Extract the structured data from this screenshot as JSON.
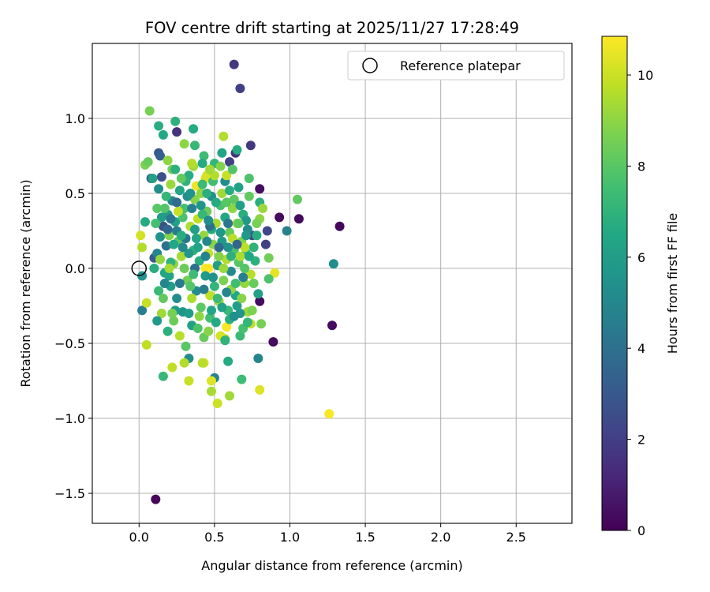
{
  "chart_data": {
    "type": "scatter",
    "title": "FOV centre drift starting at 2025/11/27 17:28:49",
    "xlabel": "Angular distance from reference (arcmin)",
    "ylabel": "Rotation from reference (arcmin)",
    "xlim": [
      -0.31,
      2.87
    ],
    "ylim": [
      -1.7,
      1.5
    ],
    "xticks": [
      0.0,
      0.5,
      1.0,
      1.5,
      2.0,
      2.5
    ],
    "xtick_labels": [
      "0.0",
      "0.5",
      "1.0",
      "1.5",
      "2.0",
      "2.5"
    ],
    "yticks": [
      -1.5,
      -1.0,
      -0.5,
      0.0,
      0.5,
      1.0
    ],
    "ytick_labels": [
      "−1.5",
      "−1.0",
      "−0.5",
      "0.0",
      "0.5",
      "1.0"
    ],
    "grid": true,
    "colormap": "viridis",
    "colorbar": {
      "label": "Hours from first FF file",
      "range": [
        0,
        10.85
      ],
      "ticks": [
        0,
        2,
        4,
        6,
        8,
        10
      ],
      "tick_labels": [
        "0",
        "2",
        "4",
        "6",
        "8",
        "10"
      ]
    },
    "legend": {
      "position": "top-right",
      "entries": [
        {
          "label": "Reference platepar",
          "marker": "open-circle"
        }
      ]
    },
    "reference_point": {
      "x": 0.0,
      "y": 0.0
    },
    "points": [
      [
        0.63,
        1.36,
        1.8
      ],
      [
        0.67,
        1.2,
        2.0
      ],
      [
        0.74,
        0.82,
        1.8
      ],
      [
        0.64,
        0.77,
        1.5
      ],
      [
        0.25,
        0.91,
        1.6
      ],
      [
        0.13,
        0.77,
        3.0
      ],
      [
        0.14,
        0.75,
        3.3
      ],
      [
        0.08,
        0.6,
        3.0
      ],
      [
        0.15,
        0.61,
        2.6
      ],
      [
        0.6,
        0.71,
        2.0
      ],
      [
        0.8,
        0.53,
        0.4
      ],
      [
        0.93,
        0.34,
        0.3
      ],
      [
        1.06,
        0.33,
        0.3
      ],
      [
        1.33,
        0.28,
        0.2
      ],
      [
        0.89,
        -0.49,
        0.3
      ],
      [
        1.28,
        -0.38,
        0.3
      ],
      [
        0.11,
        -1.54,
        0.2
      ],
      [
        0.8,
        -0.22,
        0.3
      ],
      [
        0.75,
        0.22,
        2.3
      ],
      [
        0.85,
        0.25,
        2.3
      ],
      [
        0.84,
        0.16,
        2.1
      ],
      [
        0.98,
        0.25,
        4.8
      ],
      [
        1.29,
        0.03,
        5.2
      ],
      [
        0.79,
        -0.6,
        4.9
      ],
      [
        0.5,
        -0.73,
        4.7
      ],
      [
        0.33,
        -0.6,
        5.3
      ],
      [
        0.02,
        -0.28,
        4.6
      ],
      [
        0.02,
        -0.05,
        5.5
      ],
      [
        0.04,
        0.31,
        6.6
      ],
      [
        0.09,
        0.6,
        6.2
      ],
      [
        0.13,
        0.95,
        6.8
      ],
      [
        0.16,
        0.89,
        6.5
      ],
      [
        0.24,
        0.98,
        6.9
      ],
      [
        0.36,
        0.93,
        6.6
      ],
      [
        0.37,
        0.82,
        7.2
      ],
      [
        0.43,
        0.75,
        7.4
      ],
      [
        0.5,
        0.7,
        7.1
      ],
      [
        0.55,
        0.77,
        6.3
      ],
      [
        0.65,
        0.79,
        6.6
      ],
      [
        0.73,
        0.6,
        7.8
      ],
      [
        0.8,
        0.44,
        6.8
      ],
      [
        0.68,
        -0.74,
        7.4
      ],
      [
        0.16,
        -0.72,
        7.2
      ],
      [
        0.07,
        1.05,
        8.6
      ],
      [
        0.04,
        0.69,
        8.7
      ],
      [
        0.06,
        0.71,
        8.3
      ],
      [
        0.3,
        0.83,
        9.0
      ],
      [
        0.56,
        0.88,
        9.6
      ],
      [
        0.45,
        0.62,
        10.0
      ],
      [
        0.38,
        0.55,
        10.6
      ],
      [
        0.44,
        0.6,
        10.2
      ],
      [
        0.73,
        0.48,
        8.2
      ],
      [
        0.82,
        0.4,
        9.2
      ],
      [
        0.8,
        0.33,
        9.0
      ],
      [
        1.05,
        0.46,
        8.2
      ],
      [
        0.86,
        0.07,
        8.5
      ],
      [
        0.9,
        -0.03,
        10.4
      ],
      [
        0.86,
        -0.07,
        7.8
      ],
      [
        0.81,
        -0.37,
        8.6
      ],
      [
        0.74,
        -0.37,
        9.8
      ],
      [
        0.72,
        -0.29,
        9.2
      ],
      [
        0.67,
        -0.45,
        7.3
      ],
      [
        0.57,
        -0.47,
        9.5
      ],
      [
        0.59,
        -0.62,
        6.6
      ],
      [
        0.54,
        -0.45,
        10.2
      ],
      [
        0.6,
        -0.85,
        9.3
      ],
      [
        0.52,
        -0.9,
        10.0
      ],
      [
        0.48,
        -0.82,
        9.4
      ],
      [
        0.48,
        -0.75,
        10.3
      ],
      [
        0.43,
        -0.63,
        10.1
      ],
      [
        0.42,
        -0.63,
        9.7
      ],
      [
        0.33,
        -0.75,
        9.9
      ],
      [
        0.3,
        -0.63,
        9.6
      ],
      [
        0.22,
        -0.66,
        9.8
      ],
      [
        0.05,
        -0.51,
        9.8
      ],
      [
        0.05,
        -0.23,
        9.9
      ],
      [
        0.02,
        0.14,
        9.6
      ],
      [
        0.01,
        0.22,
        10.1
      ],
      [
        0.8,
        -0.81,
        10.3
      ],
      [
        1.26,
        -0.97,
        10.8
      ],
      [
        0.44,
        0.0,
        10.8
      ],
      [
        0.46,
        0.0,
        10.9
      ],
      [
        0.58,
        -0.39,
        10.8
      ],
      [
        0.1,
        0.07,
        3.1
      ],
      [
        0.12,
        0.1,
        4.9
      ],
      [
        0.14,
        0.21,
        5.5
      ],
      [
        0.16,
        0.28,
        2.7
      ],
      [
        0.17,
        -0.03,
        6.5
      ],
      [
        0.18,
        0.15,
        4.1
      ],
      [
        0.19,
        0.36,
        5.9
      ],
      [
        0.2,
        0.22,
        8.8
      ],
      [
        0.21,
        -0.12,
        6.1
      ],
      [
        0.22,
        0.45,
        5.0
      ],
      [
        0.23,
        0.03,
        9.0
      ],
      [
        0.24,
        0.31,
        6.2
      ],
      [
        0.25,
        -0.2,
        5.3
      ],
      [
        0.26,
        0.18,
        8.0
      ],
      [
        0.27,
        0.52,
        6.4
      ],
      [
        0.28,
        0.08,
        9.4
      ],
      [
        0.29,
        -0.29,
        5.6
      ],
      [
        0.3,
        0.4,
        7.6
      ],
      [
        0.31,
        0.2,
        4.3
      ],
      [
        0.32,
        -0.08,
        8.5
      ],
      [
        0.33,
        0.62,
        6.7
      ],
      [
        0.34,
        0.28,
        9.6
      ],
      [
        0.35,
        -0.38,
        6.2
      ],
      [
        0.36,
        0.12,
        7.0
      ],
      [
        0.37,
        0.46,
        8.9
      ],
      [
        0.38,
        -0.15,
        5.2
      ],
      [
        0.39,
        0.33,
        9.8
      ],
      [
        0.4,
        0.05,
        6.8
      ],
      [
        0.41,
        -0.26,
        8.1
      ],
      [
        0.42,
        0.56,
        7.3
      ],
      [
        0.43,
        0.22,
        9.1
      ],
      [
        0.44,
        -0.05,
        5.8
      ],
      [
        0.45,
        0.38,
        8.4
      ],
      [
        0.46,
        0.1,
        9.9
      ],
      [
        0.47,
        -0.33,
        7.5
      ],
      [
        0.48,
        0.48,
        5.4
      ],
      [
        0.49,
        0.16,
        8.9
      ],
      [
        0.5,
        -0.12,
        7.1
      ],
      [
        0.51,
        0.3,
        9.4
      ],
      [
        0.52,
        0.02,
        6.0
      ],
      [
        0.53,
        -0.22,
        9.2
      ],
      [
        0.54,
        0.42,
        7.7
      ],
      [
        0.55,
        0.18,
        5.9
      ],
      [
        0.56,
        -0.08,
        8.7
      ],
      [
        0.57,
        0.34,
        6.5
      ],
      [
        0.58,
        0.06,
        9.6
      ],
      [
        0.59,
        -0.28,
        7.2
      ],
      [
        0.6,
        0.24,
        8.3
      ],
      [
        0.61,
        -0.02,
        5.1
      ],
      [
        0.62,
        0.4,
        9.0
      ],
      [
        0.63,
        0.12,
        7.8
      ],
      [
        0.64,
        -0.18,
        6.4
      ],
      [
        0.65,
        0.3,
        9.3
      ],
      [
        0.66,
        0.04,
        8.0
      ],
      [
        0.67,
        -0.3,
        5.6
      ],
      [
        0.68,
        0.18,
        8.8
      ],
      [
        0.69,
        0.36,
        6.8
      ],
      [
        0.7,
        -0.1,
        9.1
      ],
      [
        0.71,
        0.1,
        7.4
      ],
      [
        0.72,
        0.26,
        5.3
      ],
      [
        0.74,
        -0.04,
        9.7
      ],
      [
        0.76,
        0.14,
        7.0
      ],
      [
        0.78,
        0.3,
        8.6
      ],
      [
        0.79,
        -0.17,
        6.2
      ],
      [
        0.13,
        -0.15,
        7.3
      ],
      [
        0.15,
        -0.3,
        9.3
      ],
      [
        0.17,
        0.4,
        7.9
      ],
      [
        0.19,
        -0.42,
        6.9
      ],
      [
        0.21,
        0.56,
        9.2
      ],
      [
        0.23,
        -0.35,
        8.4
      ],
      [
        0.25,
        0.25,
        4.6
      ],
      [
        0.27,
        -0.45,
        9.7
      ],
      [
        0.29,
        0.34,
        7.7
      ],
      [
        0.31,
        -0.52,
        8.0
      ],
      [
        0.33,
        0.1,
        5.7
      ],
      [
        0.35,
        -0.2,
        9.5
      ],
      [
        0.37,
        0.26,
        6.1
      ],
      [
        0.39,
        -0.4,
        7.8
      ],
      [
        0.41,
        0.5,
        9.0
      ],
      [
        0.43,
        -0.46,
        8.3
      ],
      [
        0.45,
        0.18,
        5.0
      ],
      [
        0.47,
        -0.18,
        9.8
      ],
      [
        0.49,
        0.58,
        7.5
      ],
      [
        0.51,
        -0.36,
        6.6
      ],
      [
        0.53,
        0.08,
        8.8
      ],
      [
        0.55,
        0.5,
        9.3
      ],
      [
        0.57,
        -0.48,
        7.0
      ],
      [
        0.59,
        0.14,
        5.5
      ],
      [
        0.61,
        -0.14,
        9.0
      ],
      [
        0.63,
        0.46,
        8.1
      ],
      [
        0.65,
        -0.25,
        6.0
      ],
      [
        0.67,
        0.08,
        9.5
      ],
      [
        0.69,
        -0.4,
        7.6
      ],
      [
        0.71,
        0.32,
        5.8
      ],
      [
        0.75,
        -0.28,
        8.7
      ],
      [
        0.77,
        0.05,
        6.9
      ],
      [
        0.12,
        0.4,
        8.0
      ],
      [
        0.14,
        0.06,
        9.1
      ],
      [
        0.16,
        -0.2,
        8.2
      ],
      [
        0.18,
        0.48,
        7.1
      ],
      [
        0.2,
        -0.05,
        6.3
      ],
      [
        0.22,
        0.66,
        8.6
      ],
      [
        0.24,
        -0.28,
        5.9
      ],
      [
        0.26,
        0.38,
        9.9
      ],
      [
        0.28,
        0.22,
        6.7
      ],
      [
        0.3,
        0.0,
        8.4
      ],
      [
        0.32,
        0.48,
        5.2
      ],
      [
        0.34,
        -0.12,
        7.9
      ],
      [
        0.36,
        0.68,
        9.3
      ],
      [
        0.38,
        0.2,
        6.4
      ],
      [
        0.4,
        -0.32,
        9.0
      ],
      [
        0.42,
        0.36,
        7.2
      ],
      [
        0.44,
        0.08,
        4.8
      ],
      [
        0.46,
        -0.42,
        8.9
      ],
      [
        0.48,
        0.26,
        6.6
      ],
      [
        0.5,
        0.62,
        9.6
      ],
      [
        0.52,
        -0.2,
        7.3
      ],
      [
        0.54,
        0.24,
        5.7
      ],
      [
        0.56,
        0.0,
        9.2
      ],
      [
        0.58,
        0.44,
        8.0
      ],
      [
        0.6,
        -0.34,
        6.8
      ],
      [
        0.62,
        0.2,
        9.7
      ],
      [
        0.64,
        -0.1,
        7.5
      ],
      [
        0.66,
        0.54,
        6.2
      ],
      [
        0.68,
        -0.2,
        8.9
      ],
      [
        0.7,
        0.14,
        9.8
      ],
      [
        0.72,
        -0.36,
        7.1
      ],
      [
        0.13,
        0.53,
        5.3
      ],
      [
        0.15,
        0.34,
        6.0
      ],
      [
        0.17,
        -0.1,
        4.9
      ],
      [
        0.19,
        0.26,
        3.6
      ],
      [
        0.21,
        0.04,
        7.0
      ],
      [
        0.23,
        0.16,
        6.4
      ],
      [
        0.25,
        0.44,
        3.8
      ],
      [
        0.27,
        -0.1,
        4.4
      ],
      [
        0.29,
        0.14,
        5.1
      ],
      [
        0.31,
        0.58,
        7.0
      ],
      [
        0.33,
        -0.3,
        6.0
      ],
      [
        0.35,
        0.4,
        4.7
      ],
      [
        0.37,
        0.0,
        3.9
      ],
      [
        0.39,
        0.14,
        6.3
      ],
      [
        0.41,
        0.42,
        5.6
      ],
      [
        0.43,
        -0.14,
        4.5
      ],
      [
        0.45,
        0.5,
        6.8
      ],
      [
        0.47,
        0.28,
        4.0
      ],
      [
        0.49,
        -0.06,
        5.5
      ],
      [
        0.51,
        0.44,
        6.6
      ],
      [
        0.53,
        0.14,
        3.7
      ],
      [
        0.55,
        -0.26,
        6.2
      ],
      [
        0.57,
        0.58,
        5.2
      ],
      [
        0.59,
        0.3,
        4.2
      ],
      [
        0.61,
        0.08,
        6.9
      ],
      [
        0.63,
        -0.32,
        5.4
      ],
      [
        0.65,
        0.16,
        3.5
      ],
      [
        0.67,
        0.42,
        6.1
      ],
      [
        0.69,
        -0.06,
        4.6
      ],
      [
        0.71,
        0.22,
        5.8
      ],
      [
        0.1,
        0.0,
        6.7
      ],
      [
        0.11,
        0.3,
        7.6
      ],
      [
        0.12,
        -0.35,
        5.8
      ],
      [
        0.2,
        0.0,
        9.4
      ],
      [
        0.21,
        0.33,
        4.2
      ],
      [
        0.22,
        -0.3,
        8.6
      ],
      [
        0.34,
        0.5,
        5.5
      ],
      [
        0.36,
        -0.04,
        7.4
      ],
      [
        0.46,
        0.32,
        5.2
      ],
      [
        0.48,
        -0.28,
        6.4
      ],
      [
        0.58,
        -0.16,
        5.0
      ],
      [
        0.6,
        0.52,
        6.7
      ],
      [
        0.66,
        0.3,
        8.2
      ],
      [
        0.7,
        0.0,
        7.9
      ],
      [
        0.73,
        0.08,
        6.5
      ],
      [
        0.76,
        -0.1,
        8.3
      ],
      [
        0.78,
        0.22,
        6.7
      ],
      [
        0.58,
        0.62,
        9.9
      ],
      [
        0.62,
        0.66,
        7.9
      ],
      [
        0.54,
        0.68,
        8.8
      ],
      [
        0.47,
        0.66,
        9.3
      ],
      [
        0.42,
        0.7,
        6.6
      ],
      [
        0.35,
        0.7,
        9.6
      ],
      [
        0.28,
        0.6,
        8.2
      ],
      [
        0.24,
        0.66,
        6.9
      ],
      [
        0.19,
        0.72,
        9.0
      ]
    ]
  }
}
